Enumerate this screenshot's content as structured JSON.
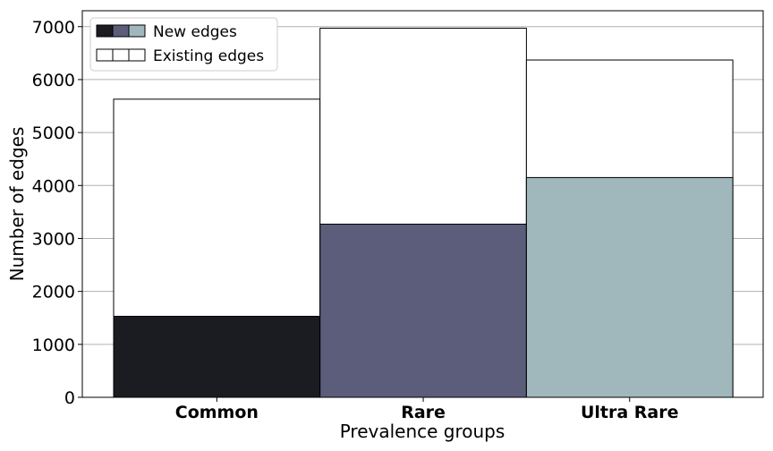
{
  "chart_data": {
    "type": "bar",
    "stacking": "overlay",
    "categories": [
      "Common",
      "Rare",
      "Ultra Rare"
    ],
    "series": [
      {
        "name": "Existing edges",
        "values": [
          5630,
          6970,
          6370
        ],
        "fill": "#ffffff"
      },
      {
        "name": "New edges",
        "values": [
          1530,
          3270,
          4150
        ],
        "colors": [
          "#1b1b22",
          "#5b5d7a",
          "#a0b8bb"
        ]
      }
    ],
    "xlabel": "Prevalence groups",
    "ylabel": "Number of edges",
    "ylim": [
      0,
      7300
    ],
    "yticks": [
      0,
      1000,
      2000,
      3000,
      4000,
      5000,
      6000,
      7000
    ],
    "grid": "horizontal",
    "legend_placement": "top-left"
  }
}
